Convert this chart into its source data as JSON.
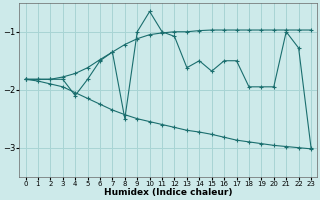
{
  "xlabel": "Humidex (Indice chaleur)",
  "background_color": "#cdeaea",
  "grid_color": "#a8d4d4",
  "line_color": "#1a6e6e",
  "x_values": [
    0,
    1,
    2,
    3,
    4,
    5,
    6,
    7,
    8,
    9,
    10,
    11,
    12,
    13,
    14,
    15,
    16,
    17,
    18,
    19,
    20,
    21,
    22,
    23
  ],
  "main_y": [
    -1.82,
    -1.82,
    -1.82,
    -1.82,
    -2.1,
    -1.82,
    -1.5,
    -1.35,
    -2.5,
    -1.0,
    -0.65,
    -1.0,
    -1.08,
    -1.62,
    -1.5,
    -1.68,
    -1.5,
    -1.5,
    -1.95,
    -1.95,
    -1.95,
    -1.0,
    -1.28,
    -3.0
  ],
  "upper_y": [
    -1.82,
    -1.82,
    -1.82,
    -1.78,
    -1.72,
    -1.62,
    -1.48,
    -1.35,
    -1.22,
    -1.12,
    -1.05,
    -1.02,
    -1.0,
    -1.0,
    -0.98,
    -0.97,
    -0.97,
    -0.97,
    -0.97,
    -0.97,
    -0.97,
    -0.97,
    -0.97,
    -0.97
  ],
  "lower_y": [
    -1.82,
    -1.85,
    -1.9,
    -1.95,
    -2.05,
    -2.15,
    -2.25,
    -2.35,
    -2.43,
    -2.5,
    -2.55,
    -2.6,
    -2.65,
    -2.7,
    -2.73,
    -2.77,
    -2.82,
    -2.87,
    -2.9,
    -2.93,
    -2.96,
    -2.98,
    -3.0,
    -3.02
  ],
  "ylim": [
    -3.5,
    -0.5
  ],
  "xlim": [
    -0.5,
    23.5
  ],
  "yticks": [
    -3,
    -2,
    -1
  ],
  "xticks": [
    0,
    1,
    2,
    3,
    4,
    5,
    6,
    7,
    8,
    9,
    10,
    11,
    12,
    13,
    14,
    15,
    16,
    17,
    18,
    19,
    20,
    21,
    22,
    23
  ]
}
